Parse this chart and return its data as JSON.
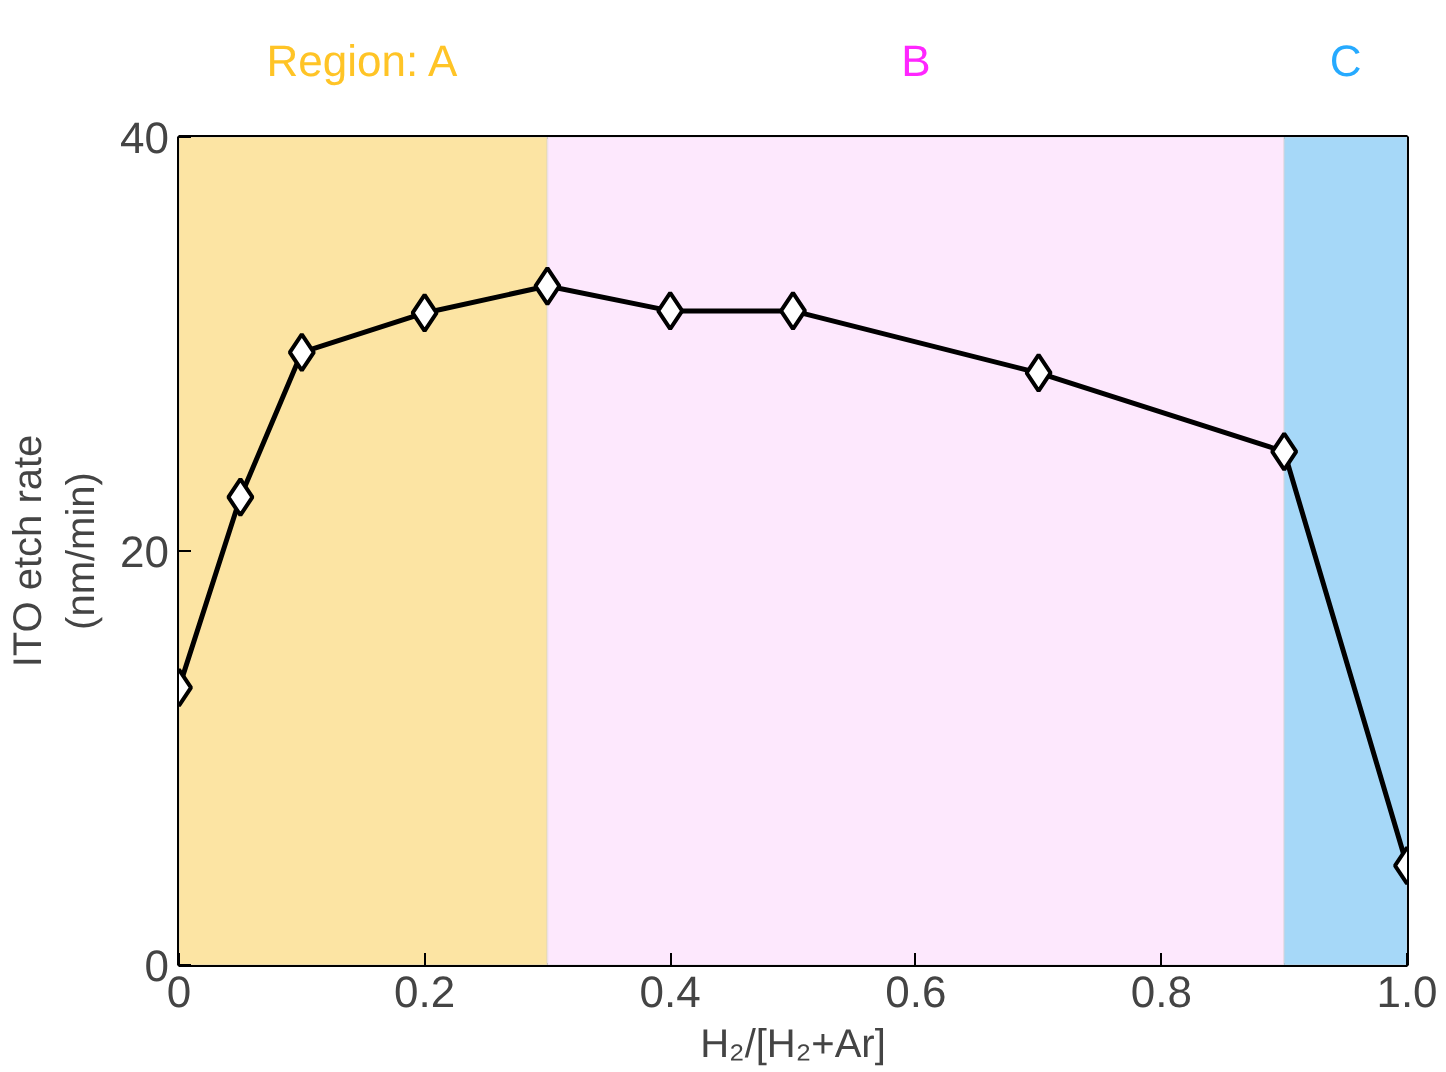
{
  "chart_data": {
    "type": "line",
    "xlabel": "H₂/[H₂+Ar]",
    "ylabel": "ITO etch rate (nm/min)",
    "x": [
      0,
      0.05,
      0.1,
      0.2,
      0.3,
      0.4,
      0.5,
      0.7,
      0.9,
      1.0
    ],
    "series": [
      {
        "color": "#000000",
        "values": [
          13.4,
          22.6,
          29.6,
          31.5,
          32.8,
          31.6,
          31.6,
          28.6,
          24.8,
          4.8
        ]
      }
    ],
    "marker": "diamond",
    "line_style": "solid",
    "xlim": [
      0,
      1.0
    ],
    "xticks": [
      0,
      0.2,
      0.4,
      0.6,
      0.8,
      {
        "value": 1.0,
        "label": "1.0"
      }
    ],
    "ylim": [
      0,
      40
    ],
    "yticks": [
      0,
      20,
      40
    ],
    "bands": [
      {
        "axis": "x",
        "from": 0,
        "to": 0.3,
        "label": "Region: A",
        "color": "#fce4a3"
      },
      {
        "axis": "x",
        "from": 0.3,
        "to": 0.9,
        "label": "B",
        "color": "#fde8fd"
      },
      {
        "axis": "x",
        "from": 0.9,
        "to": 1.0,
        "label": "C",
        "color": "#a6d8f8"
      }
    ]
  }
}
